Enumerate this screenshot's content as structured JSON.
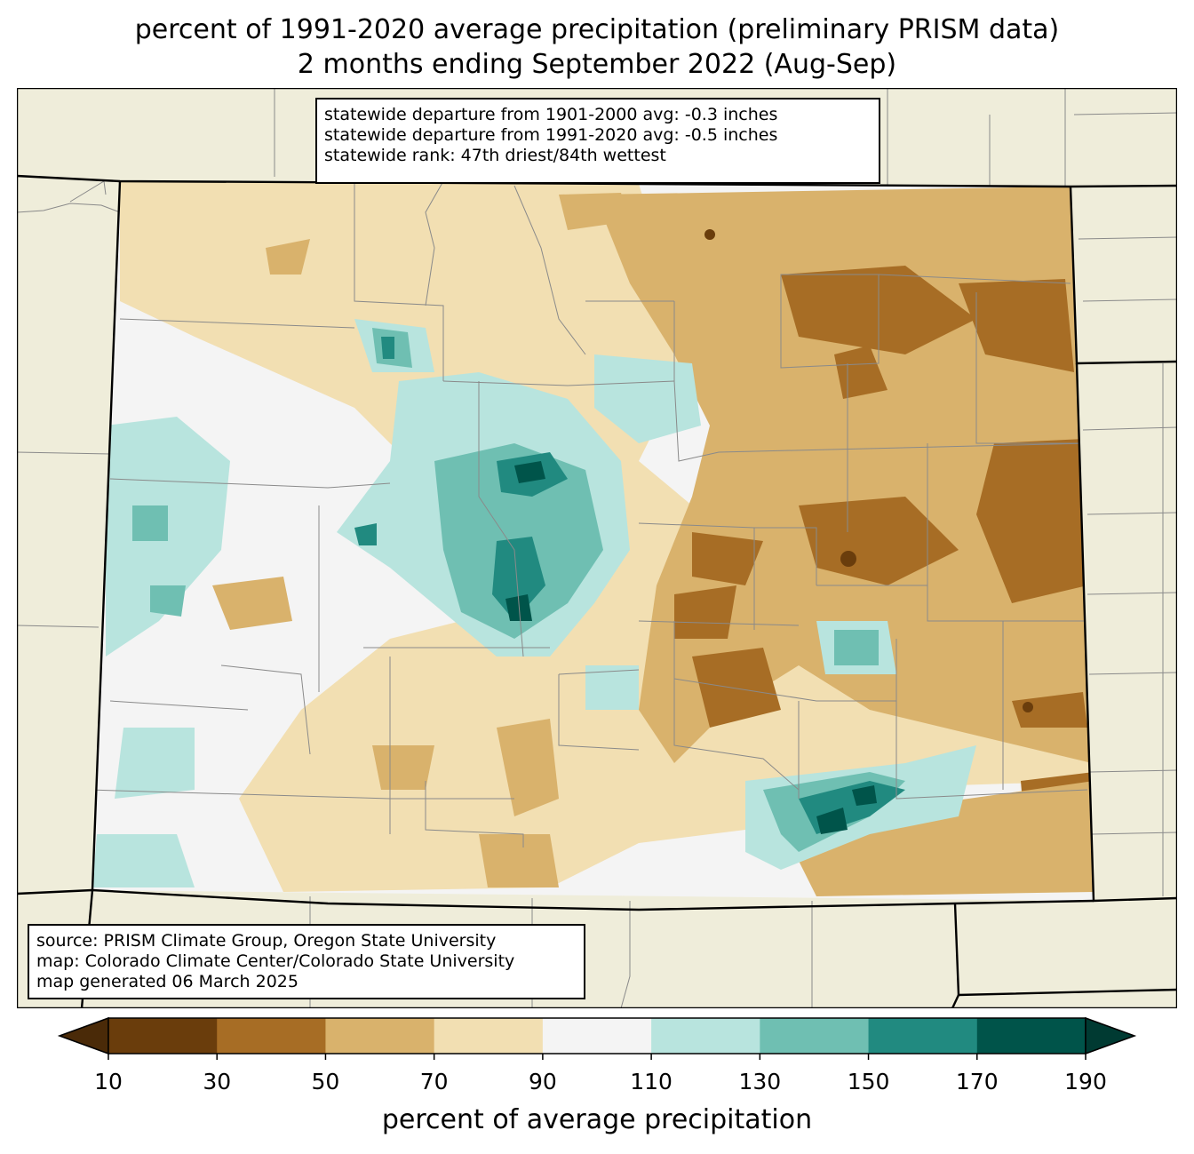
{
  "title": {
    "line1": "percent of 1991-2020 average precipitation (preliminary PRISM data)",
    "line2": "2 months ending September 2022 (Aug-Sep)"
  },
  "stats": {
    "line1": "statewide departure from 1901-2000 avg: -0.3 inches",
    "line2": "statewide departure from 1991-2020 avg: -0.5 inches",
    "line3": "statewide rank: 47th driest/84th wettest"
  },
  "credits": {
    "line1": "source: PRISM Climate Group, Oregon State University",
    "line2": "map: Colorado Climate Center/Colorado State University",
    "line3": "map generated 06 March 2025"
  },
  "colorbar": {
    "label": "percent of average precipitation",
    "ticks": [
      "10",
      "30",
      "50",
      "70",
      "90",
      "110",
      "130",
      "150",
      "170",
      "190"
    ],
    "colors": [
      "#6a3d0c",
      "#a76d25",
      "#d9b26c",
      "#f2dfb2",
      "#f4f4f4",
      "#b8e4de",
      "#6fbfb2",
      "#218a80",
      "#00544a"
    ],
    "under_color": "#4a2a08",
    "over_color": "#003a32"
  },
  "map": {
    "background_color": "#efedda",
    "nodata_color": "#f4f4f4"
  }
}
